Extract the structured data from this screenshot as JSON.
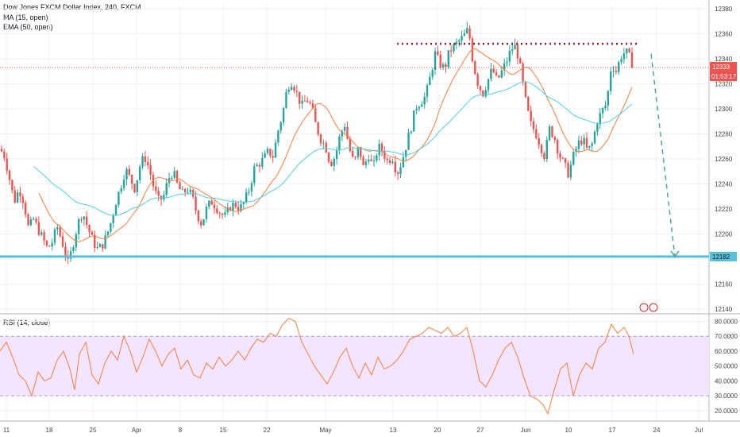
{
  "header": {
    "title": "Dow Jones FXCM Dollar Index, 240, FXCM",
    "ma_label": "MA (15, open)",
    "ema_label": "EMA (50, open)",
    "rsi_label": "RSI (14, close)"
  },
  "price_tags": {
    "last_price": "12333",
    "countdown": "01:53:17",
    "support": "12182"
  },
  "colors": {
    "up": "#26a69a",
    "down": "#ef5350",
    "ma": "#f57f3d",
    "ema": "#4dd0e1",
    "rsi_line": "#f57f3d",
    "rsi_band": "#f3e5ff",
    "support_line": "#56c1d8",
    "resistance_dots": "#8b1a2a",
    "last_price_line": "#ef5350",
    "arrow": "#4aa8a0",
    "axis_text": "#444444"
  },
  "chart_data": [
    {
      "type": "candlestick",
      "title": "Dow Jones FXCM Dollar Index, 240, FXCM",
      "ylim": [
        12140,
        12380
      ],
      "y_ticks": [
        12140,
        12160,
        12180,
        12200,
        12220,
        12240,
        12260,
        12280,
        12300,
        12320,
        12340,
        12360,
        12380
      ],
      "x_ticks": [
        "11",
        "18",
        "25",
        "Apr",
        "8",
        "15",
        "22",
        "May",
        "13",
        "20",
        "27",
        "Jun",
        "10",
        "17",
        "24",
        "Jul"
      ],
      "grid": true,
      "series": [
        {
          "name": "MA (15, open)",
          "style": "line"
        },
        {
          "name": "EMA (50, open)",
          "style": "line"
        }
      ],
      "last_price": 12333,
      "countdown": "01:53:17",
      "support_level": 12182,
      "resistance_level": 12352,
      "price_path": [
        [
          0,
          12268
        ],
        [
          6,
          12262
        ],
        [
          12,
          12244
        ],
        [
          18,
          12226
        ],
        [
          24,
          12236
        ],
        [
          30,
          12226
        ],
        [
          36,
          12204
        ],
        [
          42,
          12212
        ],
        [
          48,
          12204
        ],
        [
          54,
          12196
        ],
        [
          60,
          12188
        ],
        [
          66,
          12194
        ],
        [
          72,
          12206
        ],
        [
          80,
          12190
        ],
        [
          86,
          12176
        ],
        [
          92,
          12192
        ],
        [
          98,
          12208
        ],
        [
          104,
          12218
        ],
        [
          110,
          12206
        ],
        [
          116,
          12196
        ],
        [
          122,
          12188
        ],
        [
          128,
          12190
        ],
        [
          134,
          12198
        ],
        [
          140,
          12210
        ],
        [
          146,
          12226
        ],
        [
          152,
          12238
        ],
        [
          158,
          12252
        ],
        [
          164,
          12244
        ],
        [
          170,
          12236
        ],
        [
          176,
          12254
        ],
        [
          182,
          12262
        ],
        [
          188,
          12252
        ],
        [
          194,
          12236
        ],
        [
          200,
          12226
        ],
        [
          206,
          12230
        ],
        [
          212,
          12244
        ],
        [
          218,
          12250
        ],
        [
          224,
          12238
        ],
        [
          230,
          12232
        ],
        [
          236,
          12236
        ],
        [
          242,
          12230
        ],
        [
          248,
          12216
        ],
        [
          254,
          12208
        ],
        [
          260,
          12220
        ],
        [
          266,
          12226
        ],
        [
          272,
          12222
        ],
        [
          278,
          12216
        ],
        [
          284,
          12214
        ],
        [
          290,
          12222
        ],
        [
          296,
          12224
        ],
        [
          302,
          12220
        ],
        [
          308,
          12226
        ],
        [
          314,
          12236
        ],
        [
          320,
          12252
        ],
        [
          326,
          12256
        ],
        [
          332,
          12260
        ],
        [
          338,
          12266
        ],
        [
          344,
          12262
        ],
        [
          350,
          12282
        ],
        [
          356,
          12296
        ],
        [
          362,
          12318
        ],
        [
          368,
          12322
        ],
        [
          374,
          12312
        ],
        [
          380,
          12302
        ],
        [
          386,
          12308
        ],
        [
          392,
          12302
        ],
        [
          398,
          12286
        ],
        [
          404,
          12276
        ],
        [
          410,
          12270
        ],
        [
          416,
          12256
        ],
        [
          422,
          12262
        ],
        [
          428,
          12278
        ],
        [
          434,
          12288
        ],
        [
          440,
          12268
        ],
        [
          446,
          12256
        ],
        [
          452,
          12270
        ],
        [
          458,
          12252
        ],
        [
          464,
          12264
        ],
        [
          470,
          12252
        ],
        [
          476,
          12270
        ],
        [
          482,
          12266
        ],
        [
          488,
          12258
        ],
        [
          494,
          12262
        ],
        [
          500,
          12248
        ],
        [
          506,
          12258
        ],
        [
          512,
          12272
        ],
        [
          518,
          12286
        ],
        [
          524,
          12302
        ],
        [
          530,
          12306
        ],
        [
          536,
          12310
        ],
        [
          542,
          12326
        ],
        [
          548,
          12344
        ],
        [
          554,
          12336
        ],
        [
          560,
          12332
        ],
        [
          566,
          12346
        ],
        [
          572,
          12350
        ],
        [
          578,
          12354
        ],
        [
          584,
          12358
        ],
        [
          590,
          12364
        ],
        [
          596,
          12336
        ],
        [
          602,
          12320
        ],
        [
          608,
          12312
        ],
        [
          614,
          12322
        ],
        [
          620,
          12332
        ],
        [
          626,
          12322
        ],
        [
          632,
          12330
        ],
        [
          638,
          12338
        ],
        [
          644,
          12348
        ],
        [
          650,
          12350
        ],
        [
          656,
          12330
        ],
        [
          662,
          12306
        ],
        [
          668,
          12288
        ],
        [
          674,
          12282
        ],
        [
          680,
          12272
        ],
        [
          686,
          12262
        ],
        [
          692,
          12284
        ],
        [
          698,
          12278
        ],
        [
          704,
          12264
        ],
        [
          710,
          12256
        ],
        [
          716,
          12248
        ],
        [
          722,
          12262
        ],
        [
          728,
          12272
        ],
        [
          734,
          12276
        ],
        [
          740,
          12266
        ],
        [
          746,
          12272
        ],
        [
          752,
          12290
        ],
        [
          758,
          12298
        ],
        [
          764,
          12304
        ],
        [
          770,
          12336
        ],
        [
          776,
          12330
        ],
        [
          782,
          12342
        ],
        [
          788,
          12346
        ],
        [
          794,
          12340
        ],
        [
          798,
          12333
        ]
      ]
    },
    {
      "type": "line",
      "title": "RSI (14, close)",
      "ylim": [
        13,
        84
      ],
      "y_ticks": [
        20,
        30,
        40,
        50,
        60,
        70,
        80
      ],
      "y_tick_labels": [
        "20.0000",
        "30.0000",
        "40.0000",
        "50.0000",
        "60.0000",
        "70.0000",
        "80.0000"
      ],
      "band": [
        30,
        70
      ],
      "series": [
        {
          "name": "RSI (14, close)",
          "values": [
            [
              0,
              60
            ],
            [
              8,
              66
            ],
            [
              16,
              56
            ],
            [
              24,
              44
            ],
            [
              32,
              40
            ],
            [
              40,
              30
            ],
            [
              48,
              46
            ],
            [
              56,
              40
            ],
            [
              64,
              42
            ],
            [
              72,
              54
            ],
            [
              80,
              60
            ],
            [
              88,
              48
            ],
            [
              94,
              34
            ],
            [
              100,
              58
            ],
            [
              108,
              66
            ],
            [
              116,
              44
            ],
            [
              124,
              38
            ],
            [
              132,
              52
            ],
            [
              140,
              60
            ],
            [
              148,
              54
            ],
            [
              156,
              70
            ],
            [
              164,
              60
            ],
            [
              172,
              46
            ],
            [
              180,
              56
            ],
            [
              188,
              68
            ],
            [
              196,
              60
            ],
            [
              204,
              50
            ],
            [
              212,
              58
            ],
            [
              220,
              62
            ],
            [
              228,
              48
            ],
            [
              236,
              54
            ],
            [
              244,
              44
            ],
            [
              252,
              42
            ],
            [
              260,
              52
            ],
            [
              268,
              48
            ],
            [
              276,
              56
            ],
            [
              284,
              50
            ],
            [
              292,
              54
            ],
            [
              300,
              60
            ],
            [
              308,
              54
            ],
            [
              316,
              62
            ],
            [
              324,
              68
            ],
            [
              332,
              66
            ],
            [
              340,
              72
            ],
            [
              348,
              70
            ],
            [
              356,
              78
            ],
            [
              364,
              82
            ],
            [
              372,
              80
            ],
            [
              380,
              66
            ],
            [
              388,
              58
            ],
            [
              396,
              50
            ],
            [
              404,
              44
            ],
            [
              412,
              38
            ],
            [
              420,
              46
            ],
            [
              428,
              56
            ],
            [
              436,
              62
            ],
            [
              444,
              50
            ],
            [
              452,
              42
            ],
            [
              460,
              52
            ],
            [
              468,
              44
            ],
            [
              476,
              56
            ],
            [
              484,
              48
            ],
            [
              492,
              50
            ],
            [
              500,
              54
            ],
            [
              508,
              60
            ],
            [
              516,
              68
            ],
            [
              524,
              70
            ],
            [
              532,
              72
            ],
            [
              540,
              76
            ],
            [
              548,
              74
            ],
            [
              556,
              72
            ],
            [
              564,
              76
            ],
            [
              572,
              70
            ],
            [
              580,
              72
            ],
            [
              588,
              76
            ],
            [
              596,
              60
            ],
            [
              604,
              40
            ],
            [
              612,
              36
            ],
            [
              620,
              44
            ],
            [
              628,
              54
            ],
            [
              636,
              62
            ],
            [
              644,
              66
            ],
            [
              652,
              56
            ],
            [
              660,
              42
            ],
            [
              668,
              30
            ],
            [
              676,
              28
            ],
            [
              684,
              24
            ],
            [
              690,
              18
            ],
            [
              698,
              34
            ],
            [
              706,
              48
            ],
            [
              714,
              52
            ],
            [
              722,
              30
            ],
            [
              730,
              44
            ],
            [
              738,
              52
            ],
            [
              746,
              48
            ],
            [
              754,
              62
            ],
            [
              762,
              66
            ],
            [
              770,
              78
            ],
            [
              778,
              72
            ],
            [
              786,
              76
            ],
            [
              792,
              70
            ],
            [
              798,
              58
            ]
          ]
        }
      ]
    }
  ]
}
